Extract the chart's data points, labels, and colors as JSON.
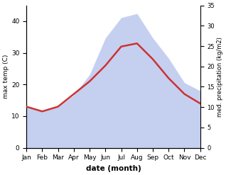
{
  "months": [
    "Jan",
    "Feb",
    "Mar",
    "Apr",
    "May",
    "Jun",
    "Jul",
    "Aug",
    "Sep",
    "Oct",
    "Nov",
    "Dec"
  ],
  "max_temp": [
    13,
    11.5,
    13,
    17,
    21,
    26,
    32,
    33,
    28,
    22,
    17,
    14
  ],
  "precipitation": [
    10,
    9,
    10,
    13,
    18,
    27,
    32,
    33,
    27,
    22,
    16,
    14
  ],
  "temp_color": "#cc3333",
  "precip_fill_color": "#c5d0f0",
  "temp_ylim": [
    0,
    45
  ],
  "precip_ylim": [
    0,
    35
  ],
  "temp_yticks": [
    0,
    10,
    20,
    30,
    40
  ],
  "precip_yticks": [
    0,
    5,
    10,
    15,
    20,
    25,
    30,
    35
  ],
  "ylabel_left": "max temp (C)",
  "ylabel_right": "med. precipitation (kg/m2)",
  "xlabel": "date (month)",
  "background_color": "#ffffff"
}
